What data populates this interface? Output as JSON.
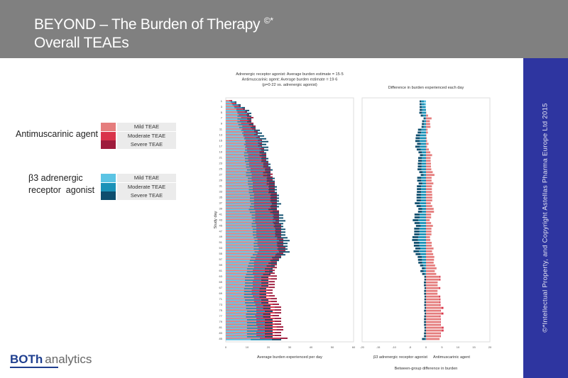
{
  "header": {
    "title": "BEYOND – The Burden of Therapy",
    "title_mark": "©*",
    "subtitle": "Overall TEAEs"
  },
  "side_text": "©*Intellectual Property, and Copyright Astellas Pharma Europe Ltd 2015",
  "logo": {
    "bold": "BOTh",
    "light": "analytics"
  },
  "legend": {
    "groups": [
      {
        "label": "Antimuscarinic agent",
        "items": [
          {
            "label": "Mild TEAE",
            "color": "#e57d7d"
          },
          {
            "label": "Moderate TEAE",
            "color": "#d9344a"
          },
          {
            "label": "Severe TEAE",
            "color": "#9e1b3c"
          }
        ]
      },
      {
        "label_line1": "β3 adrenergic",
        "label_line2": "receptor  agonist",
        "items": [
          {
            "label": "Mild TEAE",
            "color": "#5bc4e4"
          },
          {
            "label": "Moderate TEAE",
            "color": "#1a92b8"
          },
          {
            "label": "Severe TEAE",
            "color": "#0e4e6e"
          }
        ]
      }
    ]
  },
  "chart_data": [
    {
      "type": "bar",
      "orientation": "horizontal-stacked",
      "title_lines": [
        "Adrenergic receptor agonist: Average burden estimate = 15·5",
        "Antimuscarinic agent: Average burden estimate = 19·6",
        "(p=0·22 vs. adrenergic agonist)"
      ],
      "xlabel": "Average burden experienced per day",
      "ylabel": "Study day",
      "xlim": [
        0,
        60
      ],
      "xticks": [
        0,
        10,
        20,
        30,
        40,
        50,
        60
      ],
      "days": 85,
      "severity_share": {
        "antimuscarinic": [
          0.55,
          0.33,
          0.12
        ],
        "adrenergic": [
          0.45,
          0.38,
          0.17
        ]
      },
      "series": [
        {
          "name": "Antimuscarinic agent",
          "total": [
            3,
            5,
            7,
            9,
            10,
            11,
            13,
            12,
            13,
            14,
            14,
            15,
            15,
            16,
            17,
            17,
            17,
            18,
            18,
            19,
            19,
            19,
            20,
            20,
            21,
            21,
            22,
            22,
            22,
            23,
            23,
            23,
            23,
            24,
            24,
            24,
            24,
            24,
            24,
            25,
            25,
            25,
            25,
            25,
            26,
            26,
            26,
            26,
            26,
            27,
            27,
            27,
            28,
            28,
            27,
            26,
            25,
            24,
            24,
            24,
            23,
            23,
            24,
            24,
            23,
            23,
            23,
            22,
            22,
            23,
            24,
            24,
            25,
            26,
            26,
            26,
            25,
            26,
            26,
            26,
            27,
            27,
            26,
            26,
            29
          ]
        },
        {
          "name": "β3 adrenergic receptor agonist",
          "total": [
            5,
            7,
            9,
            11,
            12,
            12,
            12,
            12,
            13,
            14,
            16,
            17,
            18,
            19,
            20,
            19,
            20,
            20,
            19,
            19,
            20,
            20,
            21,
            21,
            22,
            21,
            21,
            23,
            23,
            23,
            24,
            24,
            24,
            25,
            25,
            25,
            26,
            25,
            24,
            25,
            27,
            27,
            28,
            27,
            27,
            28,
            28,
            28,
            29,
            30,
            29,
            29,
            29,
            30,
            28,
            26,
            25,
            24,
            23,
            22,
            22,
            21,
            20,
            20,
            20,
            20,
            19,
            19,
            19,
            19,
            20,
            20,
            21,
            21,
            22,
            21,
            21,
            22,
            22,
            22,
            22,
            22,
            22,
            22,
            26
          ]
        }
      ]
    },
    {
      "type": "bar",
      "orientation": "horizontal-diverging",
      "title": "Difference in burden experienced each day",
      "xlim": [
        -20,
        20
      ],
      "xticks": [
        -20,
        -15,
        -10,
        -5,
        0,
        5,
        10,
        15,
        20
      ],
      "left_label": "β3 adrenergic receptor agonist",
      "right_label": "Antimuscarinic agent",
      "xlabel": "Between-group difference in burden"
    }
  ]
}
